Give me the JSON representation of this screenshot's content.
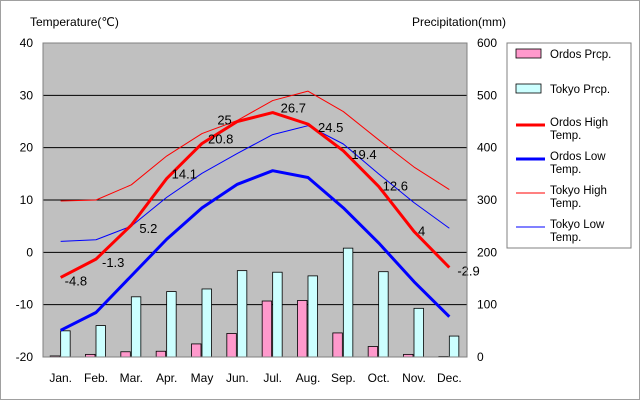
{
  "chart_data": {
    "type": "bar+line",
    "left_axis_label": "Temperature(℃)",
    "right_axis_label": "Precipitation(mm)",
    "left_ticks": [
      40,
      30,
      20,
      10,
      0,
      -10,
      -20
    ],
    "right_ticks": [
      600,
      500,
      400,
      300,
      200,
      100,
      0
    ],
    "ylim_temp": [
      -20,
      40
    ],
    "ylim_prcp": [
      0,
      600
    ],
    "categories": [
      "Jan.",
      "Feb.",
      "Mar.",
      "Apr.",
      "May",
      "Jun.",
      "Jul.",
      "Aug.",
      "Sep.",
      "Oct.",
      "Nov.",
      "Dec."
    ],
    "grid": true,
    "legend_position": "right",
    "bar_series": [
      {
        "name": "Ordos Prcp.",
        "color": "#ff99cc",
        "values": [
          2,
          5,
          10,
          11,
          25,
          45,
          107,
          108,
          46,
          20,
          5,
          1
        ]
      },
      {
        "name": "Tokyo Prcp.",
        "color": "#ccffff",
        "values": [
          50,
          60,
          115,
          125,
          130,
          165,
          162,
          155,
          208,
          163,
          93,
          40
        ]
      }
    ],
    "line_series": [
      {
        "name": "Ordos High Temp.",
        "color": "#ff0000",
        "width": 3,
        "values": [
          -4.8,
          -1.3,
          5.2,
          14.1,
          20.8,
          25,
          26.7,
          24.5,
          19.4,
          12.6,
          4,
          -2.9
        ],
        "labels": [
          "-4.8",
          "-1.3",
          "5.2",
          "14.1",
          "20.8",
          "25",
          "26.7",
          "24.5",
          "19.4",
          "12.6",
          "4",
          "-2.9"
        ]
      },
      {
        "name": "Ordos Low Temp.",
        "color": "#0000ff",
        "width": 3,
        "values": [
          -14.9,
          -11.5,
          -4.5,
          2.5,
          8.5,
          13,
          15.6,
          14.3,
          8.5,
          1.8,
          -5.6,
          -12.3
        ]
      },
      {
        "name": "Tokyo High Temp.",
        "color": "#ff0000",
        "width": 1,
        "values": [
          9.8,
          10,
          12.9,
          18.4,
          22.7,
          25.2,
          29,
          30.8,
          26.9,
          21.5,
          16.3,
          12
        ]
      },
      {
        "name": "Tokyo Low Temp.",
        "color": "#0000ff",
        "width": 1,
        "values": [
          2.1,
          2.4,
          5,
          10.5,
          15.1,
          18.9,
          22.5,
          24.2,
          20.7,
          15,
          9.5,
          4.6
        ]
      }
    ]
  }
}
